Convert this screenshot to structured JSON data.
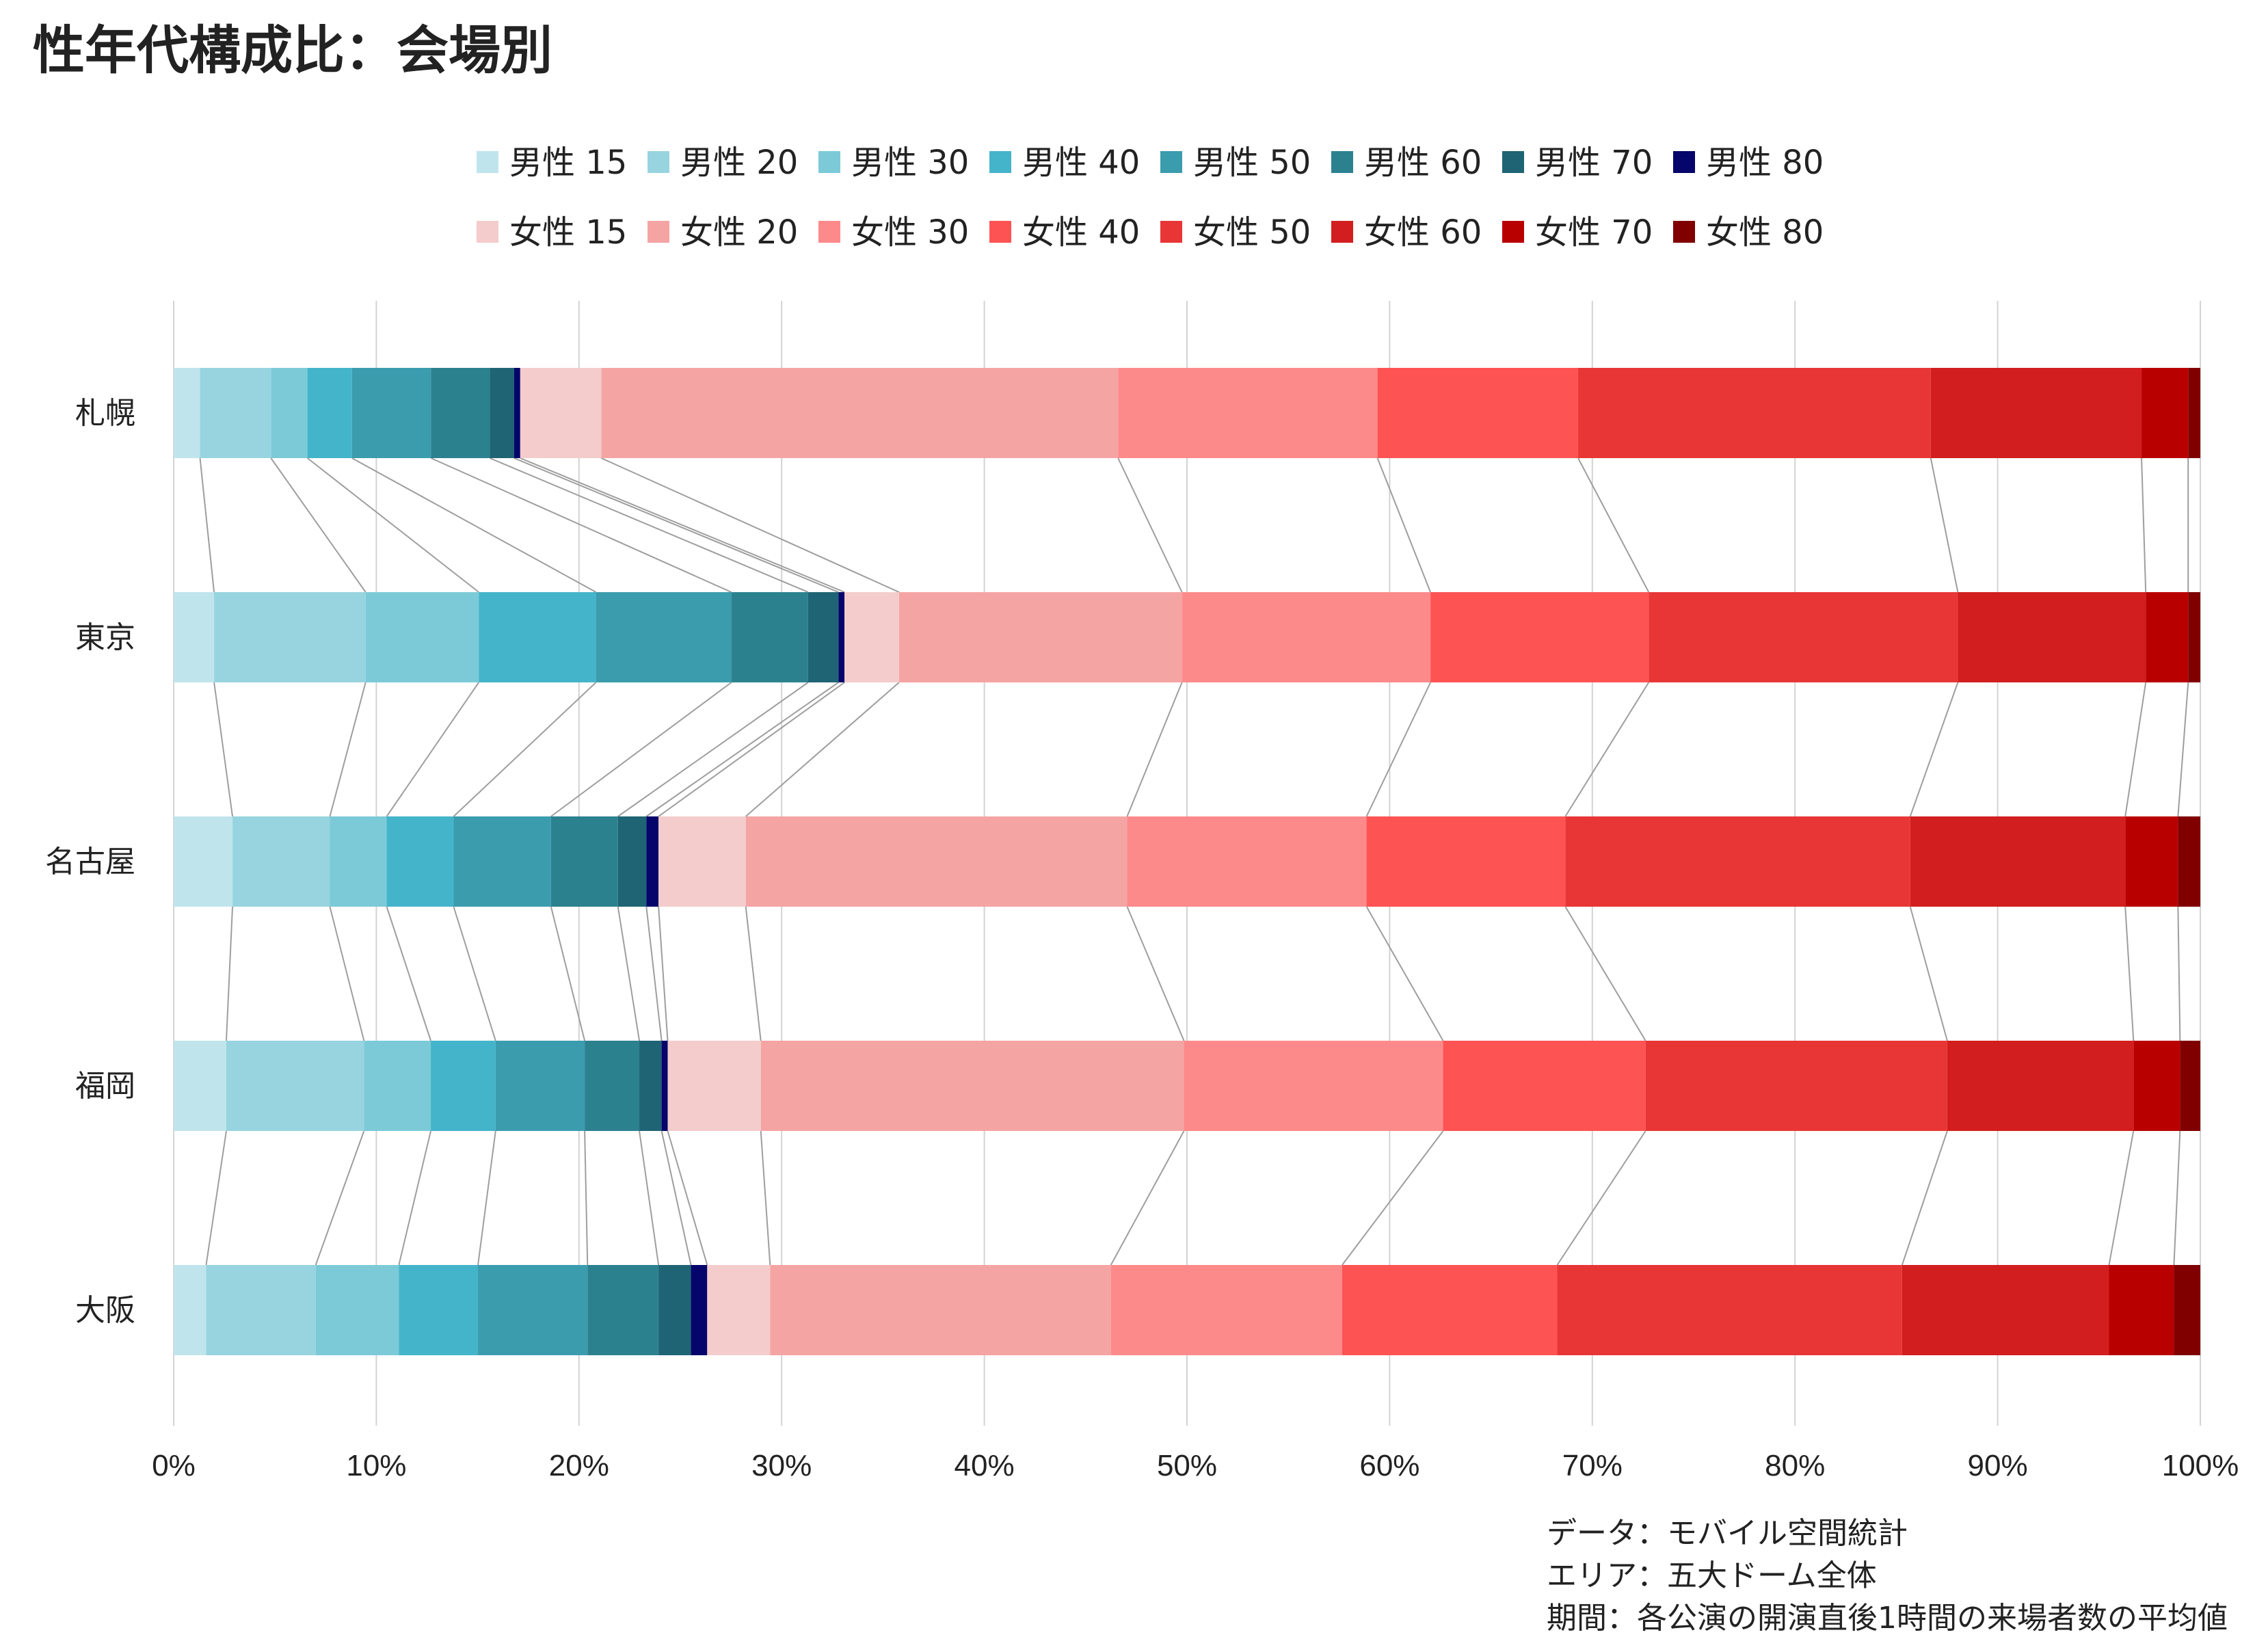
{
  "chart_data": {
    "type": "bar",
    "orientation": "horizontal",
    "stacked": "percent",
    "title": "性年代構成比：会場別",
    "categories": [
      "札幌",
      "東京",
      "名古屋",
      "福岡",
      "大阪"
    ],
    "xlim": [
      0,
      100
    ],
    "x_ticks": [
      "0%",
      "10%",
      "20%",
      "30%",
      "40%",
      "50%",
      "60%",
      "70%",
      "80%",
      "90%",
      "100%"
    ],
    "grid": true,
    "legend_position": "top",
    "connector_lines": true,
    "series": [
      {
        "name": "男性 15",
        "color": "#c0e4ec",
        "values": [
          1.3,
          2.0,
          2.9,
          2.6,
          1.6
        ]
      },
      {
        "name": "男性 20",
        "color": "#97d4df",
        "values": [
          3.5,
          7.5,
          4.8,
          6.8,
          5.4
        ]
      },
      {
        "name": "男性 30",
        "color": "#7ccad8",
        "values": [
          1.8,
          5.6,
          2.8,
          3.3,
          4.1
        ]
      },
      {
        "name": "男性 40",
        "color": "#44b4ca",
        "values": [
          2.2,
          5.8,
          3.3,
          3.2,
          3.9
        ]
      },
      {
        "name": "男性 50",
        "color": "#3b9cae",
        "values": [
          3.9,
          6.7,
          4.8,
          4.4,
          5.4
        ]
      },
      {
        "name": "男性 60",
        "color": "#2c818f",
        "values": [
          2.9,
          3.8,
          3.3,
          2.7,
          3.5
        ]
      },
      {
        "name": "男性 70",
        "color": "#1f6474",
        "values": [
          1.2,
          1.5,
          1.4,
          1.1,
          1.6
        ]
      },
      {
        "name": "男性 80",
        "color": "#05056b",
        "values": [
          0.3,
          0.3,
          0.6,
          0.3,
          0.8
        ]
      },
      {
        "name": "女性 15",
        "color": "#f4cccc",
        "values": [
          4.0,
          2.7,
          4.3,
          4.6,
          3.1
        ]
      },
      {
        "name": "女性 20",
        "color": "#f5a4a4",
        "values": [
          25.5,
          14.0,
          18.8,
          20.9,
          16.8
        ]
      },
      {
        "name": "女性 30",
        "color": "#fd8a8a",
        "values": [
          12.8,
          12.3,
          11.8,
          12.8,
          11.4
        ]
      },
      {
        "name": "女性 40",
        "color": "#fd5353",
        "values": [
          9.9,
          10.8,
          9.8,
          10.0,
          10.6
        ]
      },
      {
        "name": "女性 50",
        "color": "#e83636",
        "values": [
          17.4,
          15.3,
          17.0,
          14.9,
          17.0
        ]
      },
      {
        "name": "女性 60",
        "color": "#d21e1e",
        "values": [
          10.4,
          9.3,
          10.6,
          9.2,
          10.2
        ]
      },
      {
        "name": "女性 70",
        "color": "#b90000",
        "values": [
          2.3,
          2.1,
          2.6,
          2.3,
          3.2
        ]
      },
      {
        "name": "女性 80",
        "color": "#800000",
        "values": [
          0.6,
          0.6,
          1.1,
          1.0,
          1.3
        ]
      }
    ]
  },
  "notes": [
    "データ：モバイル空間統計",
    "エリア：五大ドーム全体",
    "期間：各公演の開演直後1時間の来場者数の平均値"
  ]
}
